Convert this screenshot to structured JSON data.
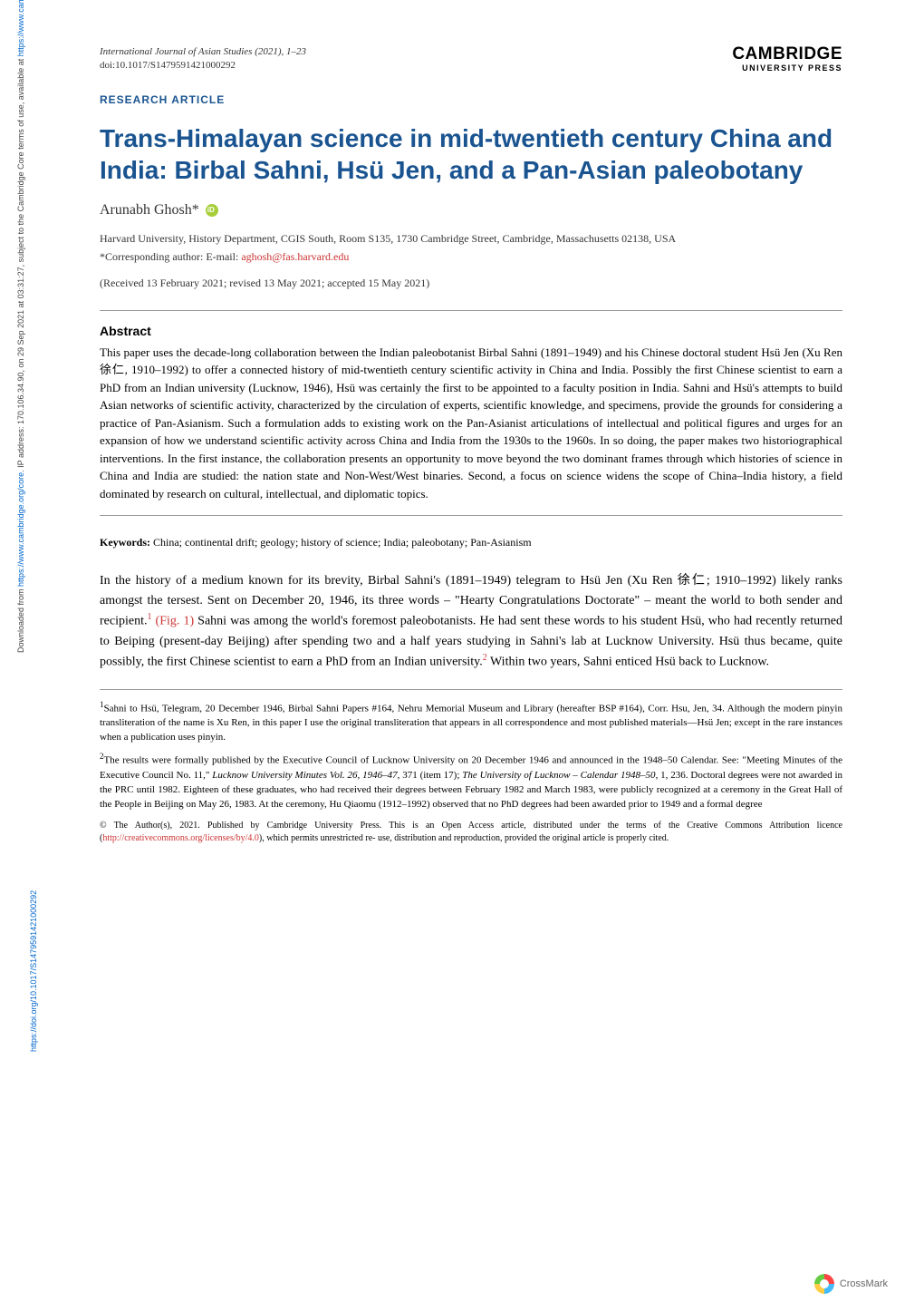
{
  "journal": {
    "name": "International Journal of Asian Studies",
    "year_pages": "(2021), 1–23",
    "doi": "doi:10.1017/S1479591421000292"
  },
  "publisher": {
    "name": "CAMBRIDGE",
    "subtitle": "UNIVERSITY PRESS"
  },
  "article_type": "RESEARCH ARTICLE",
  "title": "Trans-Himalayan science in mid-twentieth century China and India: Birbal Sahni, Hsü Jen, and a Pan-Asian paleobotany",
  "author": {
    "name": "Arunabh Ghosh*",
    "affiliation": "Harvard University, History Department, CGIS South, Room S135, 1730 Cambridge Street, Cambridge, Massachusetts 02138, USA",
    "corresponding_label": "*Corresponding author: E-mail:",
    "email": "aghosh@fas.harvard.edu"
  },
  "dates": "(Received 13 February 2021; revised 13 May 2021; accepted 15 May 2021)",
  "abstract": {
    "heading": "Abstract",
    "text": "This paper uses the decade-long collaboration between the Indian paleobotanist Birbal Sahni (1891–1949) and his Chinese doctoral student Hsü Jen (Xu Ren 徐仁, 1910–1992) to offer a connected history of mid-twentieth century scientific activity in China and India. Possibly the first Chinese scientist to earn a PhD from an Indian university (Lucknow, 1946), Hsü was certainly the first to be appointed to a faculty position in India. Sahni and Hsü's attempts to build Asian networks of scientific activity, characterized by the circulation of experts, scientific knowledge, and specimens, provide the grounds for considering a practice of Pan-Asianism. Such a formulation adds to existing work on the Pan-Asianist articulations of intellectual and political figures and urges for an expansion of how we understand scientific activity across China and India from the 1930s to the 1960s. In so doing, the paper makes two historiographical interventions. In the first instance, the collaboration presents an opportunity to move beyond the two dominant frames through which histories of science in China and India are studied: the nation state and Non-West/West binaries. Second, a focus on science widens the scope of China–India history, a field dominated by research on cultural, intellectual, and diplomatic topics."
  },
  "keywords": {
    "label": "Keywords:",
    "text": "China; continental drift; geology; history of science; India; paleobotany; Pan-Asianism"
  },
  "body_paragraph_1": "In the history of a medium known for its brevity, Birbal Sahni's (1891–1949) telegram to Hsü Jen (Xu Ren 徐仁; 1910–1992) likely ranks amongst the tersest. Sent on December 20, 1946, its three words – \"Hearty Congratulations Doctorate\" – meant the world to both sender and recipient.",
  "body_link_fig": "(Fig. 1)",
  "body_paragraph_1b": " Sahni was among the world's foremost paleobotanists. He had sent these words to his student Hsü, who had recently returned to Beiping (present-day Beijing) after spending two and a half years studying in Sahni's lab at Lucknow University. Hsü thus became, quite possibly, the first Chinese scientist to earn a PhD from an Indian university.",
  "body_paragraph_1c": " Within two years, Sahni enticed Hsü back to Lucknow.",
  "footnotes": {
    "fn1": "Sahni to Hsü, Telegram, 20 December 1946, Birbal Sahni Papers #164, Nehru Memorial Museum and Library (hereafter BSP #164), Corr. Hsu, Jen, 34. Although the modern pinyin transliteration of the name is Xu Ren, in this paper I use the original transliteration that appears in all correspondence and most published materials—Hsü Jen; except in the rare instances when a publication uses pinyin.",
    "fn2_a": "The results were formally published by the Executive Council of Lucknow University on 20 December 1946 and announced in the 1948–50 Calendar. See: \"Meeting Minutes of the Executive Council No. 11,\" ",
    "fn2_italic1": "Lucknow University Minutes Vol. 26, 1946–47",
    "fn2_b": ", 371 (item 17); ",
    "fn2_italic2": "The University of Lucknow – Calendar 1948–50",
    "fn2_c": ", 1, 236. Doctoral degrees were not awarded in the PRC until 1982. Eighteen of these graduates, who had received their degrees between February 1982 and March 1983, were publicly recognized at a ceremony in the Great Hall of the People in Beijing on May 26, 1983. At the ceremony, Hu Qiaomu (1912–1992) observed that no PhD degrees had been awarded prior to 1949 and a formal degree"
  },
  "copyright": {
    "text_a": "© The Author(s), 2021. Published by Cambridge University Press. This is an Open Access article, distributed under the terms of the Creative Commons Attribution licence (",
    "link": "http://creativecommons.org/licenses/by/4.0",
    "text_b": "), which permits unrestricted re- use, distribution and reproduction, provided the original article is properly cited."
  },
  "crossmark_label": "CrossMark",
  "sidebar": {
    "line1_a": "Downloaded from ",
    "line1_link1": "https://www.cambridge.org/core",
    "line1_b": ". IP address: 170.106.34.90, on 29 Sep 2021 at 03:31:27, subject to the Cambridge Core terms of use, available at ",
    "line1_link2": "https://www.cambridge.org/core/terms",
    "line1_c": ".",
    "line2_link": "https://doi.org/10.1017/S1479591421000292"
  },
  "styling": {
    "title_color": "#1a5490",
    "link_color": "#cc3333",
    "sidebar_link_color": "#0066cc",
    "background_color": "#ffffff",
    "title_fontsize": 28,
    "body_fontsize": 14,
    "abstract_fontsize": 13,
    "footnote_fontsize": 11,
    "copyright_fontsize": 10
  }
}
